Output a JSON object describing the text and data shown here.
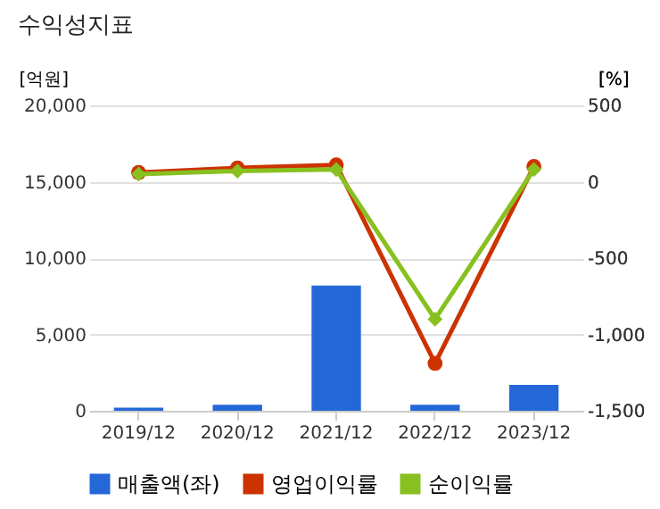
{
  "chart_data": {
    "type": "bar",
    "title": "수익성지표",
    "ylabel": "[억원]",
    "y2label": "[%]",
    "categories": [
      "2019/12",
      "2020/12",
      "2021/12",
      "2022/12",
      "2023/12"
    ],
    "series": [
      {
        "name": "매출액(좌)",
        "color": "#2468d8",
        "values": [
          200,
          400,
          8200,
          400,
          1700
        ]
      },
      {
        "name": "영업이익률",
        "type": "line",
        "axis": "y2",
        "marker": "circle",
        "color": "#cc3300",
        "values": [
          60,
          90,
          110,
          -1190,
          100
        ]
      },
      {
        "name": "순이익률",
        "type": "line",
        "axis": "y2",
        "marker": "diamond",
        "color": "#88c020",
        "values": [
          50,
          70,
          80,
          -900,
          80
        ]
      }
    ],
    "ylim": [
      0,
      20000
    ],
    "yticks": [
      0,
      {
        "value": 5000,
        "label": "5,000"
      },
      {
        "value": 10000,
        "label": "10,000"
      },
      {
        "value": 15000,
        "label": "15,000"
      },
      {
        "value": 20000,
        "label": "20,000"
      }
    ],
    "y2lim": [
      -1500,
      500
    ],
    "y2ticks": [
      {
        "value": -1500,
        "label": "-1,500"
      },
      {
        "value": -1000,
        "label": "-1,000"
      },
      {
        "value": -500,
        "label": "-500"
      },
      0,
      {
        "value": 500,
        "label": "500"
      }
    ],
    "grid": "y",
    "legend": "bottom"
  }
}
